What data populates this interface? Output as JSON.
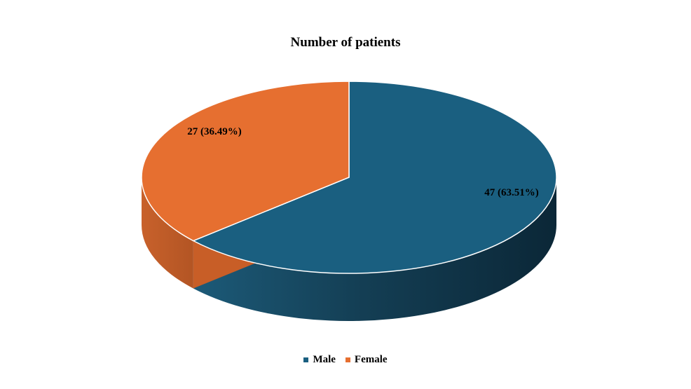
{
  "chart_data": {
    "type": "pie",
    "title": "Number of patients",
    "categories": [
      "Male",
      "Female"
    ],
    "values": [
      47,
      27
    ],
    "data_labels": [
      "47 (63.51%)",
      "27 (36.49%)"
    ],
    "colors": [
      "#1a5f80",
      "#e66f30"
    ],
    "legend_position": "bottom",
    "style": "3d"
  }
}
